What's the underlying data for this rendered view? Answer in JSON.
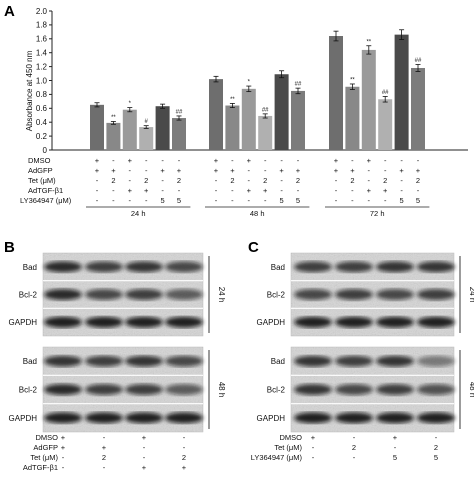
{
  "panels": {
    "a": "A",
    "b": "B",
    "c": "C"
  },
  "chart_data": {
    "type": "bar",
    "ylabel": "Absorbance at 450 nm",
    "ylim": [
      0,
      2.0
    ],
    "yticks": [
      "0",
      "0.2",
      "0.4",
      "0.6",
      "0.8",
      "1.0",
      "1.2",
      "1.4",
      "1.6",
      "1.8",
      "2.0"
    ],
    "groups": [
      {
        "name": "24 h",
        "values": [
          0.65,
          0.39,
          0.58,
          0.33,
          0.63,
          0.46
        ],
        "errors": [
          0.03,
          0.02,
          0.03,
          0.02,
          0.03,
          0.03
        ],
        "sig": [
          "",
          "**",
          "*",
          "#",
          "",
          "##"
        ]
      },
      {
        "name": "48 h",
        "values": [
          1.02,
          0.64,
          0.88,
          0.49,
          1.09,
          0.85
        ],
        "errors": [
          0.04,
          0.03,
          0.04,
          0.03,
          0.05,
          0.04
        ],
        "sig": [
          "",
          "**",
          "*",
          "##",
          "",
          "##"
        ]
      },
      {
        "name": "72 h",
        "values": [
          1.64,
          0.91,
          1.44,
          0.73,
          1.66,
          1.18
        ],
        "errors": [
          0.07,
          0.04,
          0.06,
          0.04,
          0.07,
          0.05
        ],
        "sig": [
          "",
          "**",
          "**",
          "##",
          "",
          "##"
        ]
      }
    ],
    "bar_colors": [
      "#6e6e6e",
      "#888888",
      "#9a9a9a",
      "#b0b0b0",
      "#4a4a4a",
      "#7c7c7c"
    ],
    "conditions": [
      {
        "label": "DMSO",
        "cells": [
          "+",
          "-",
          "+",
          "-",
          "-",
          "-"
        ]
      },
      {
        "label": "AdGFP",
        "cells": [
          "+",
          "+",
          "-",
          "-",
          "+",
          "+"
        ]
      },
      {
        "label": "Tet (μM)",
        "cells": [
          "-",
          "2",
          "-",
          "2",
          "-",
          "2"
        ]
      },
      {
        "label": "AdTGF-β1",
        "cells": [
          "-",
          "-",
          "+",
          "+",
          "-",
          "-"
        ]
      },
      {
        "label": "LY364947 (μM)",
        "cells": [
          "-",
          "-",
          "-",
          "-",
          "5",
          "5"
        ]
      }
    ]
  },
  "blot_b": {
    "rows_24": [
      "Bad",
      "Bcl-2",
      "GAPDH"
    ],
    "rows_48": [
      "Bad",
      "Bcl-2",
      "GAPDH"
    ],
    "time_24": "24 h",
    "time_48": "48 h",
    "conditions": [
      {
        "label": "DMSO",
        "cells": [
          "+",
          "-",
          "+",
          "-"
        ]
      },
      {
        "label": "AdGFP",
        "cells": [
          "+",
          "+",
          "-",
          "-"
        ]
      },
      {
        "label": "Tet (μM)",
        "cells": [
          "-",
          "2",
          "-",
          "2"
        ]
      },
      {
        "label": "AdTGF-β1",
        "cells": [
          "-",
          "-",
          "+",
          "+"
        ]
      }
    ]
  },
  "blot_c": {
    "rows_24": [
      "Bad",
      "Bcl-2",
      "GAPDH"
    ],
    "rows_48": [
      "Bad",
      "Bcl-2",
      "GAPDH"
    ],
    "time_24": "24 h",
    "time_48": "48 h",
    "conditions": [
      {
        "label": "DMSO",
        "cells": [
          "+",
          "-",
          "+",
          "-"
        ]
      },
      {
        "label": "Tet (μM)",
        "cells": [
          "-",
          "2",
          "-",
          "2"
        ]
      },
      {
        "label": "LY364947 (μM)",
        "cells": [
          "-",
          "-",
          "5",
          "5"
        ]
      }
    ]
  }
}
